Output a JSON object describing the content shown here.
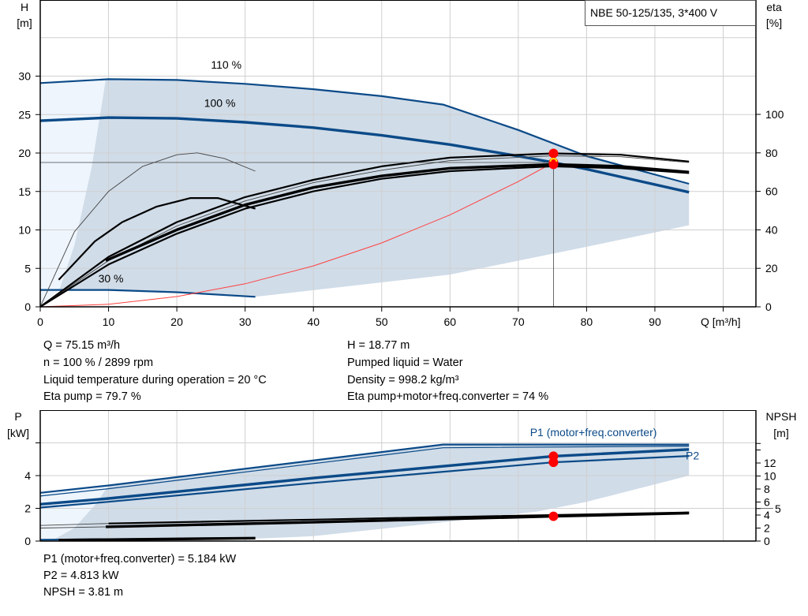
{
  "title_box": "NBE 50-125/135, 3*400 V",
  "colors": {
    "curve_blue": "#0b4a88",
    "band": "#d0dce8",
    "band_light": "#eef5fd",
    "duty_point": "#ff0000",
    "system_curve": "#ff4040",
    "grid": "#d0d0d0"
  },
  "info": {
    "left": [
      "Q = 75.15 m³/h",
      "n = 100 % / 2899 rpm",
      "Liquid temperature during operation = 20 °C",
      "Eta pump = 79.7 %"
    ],
    "right": [
      "H = 18.77 m",
      "Pumped liquid = Water",
      "Density = 998.2 kg/m³",
      "Eta pump+motor+freq.converter = 74 %"
    ],
    "bottom": [
      "P1 (motor+freq.converter) = 5.184 kW",
      "P2 = 4.813 kW",
      "NPSH = 3.81 m"
    ]
  },
  "chart_data": [
    {
      "type": "line",
      "title": "NBE 50-125/135, 3*400 V",
      "xlabel": "Q [m³/h]",
      "ylabel": [
        "H",
        "[m]"
      ],
      "y2label": [
        "eta",
        "[%]"
      ],
      "xlim": [
        0,
        105
      ],
      "ylim": [
        0,
        40
      ],
      "y2lim": [
        0,
        160
      ],
      "grid": true,
      "xticks": [
        0,
        10,
        20,
        30,
        40,
        50,
        60,
        70,
        80,
        90
      ],
      "yticks": [
        0,
        5,
        10,
        15,
        20,
        25,
        30
      ],
      "y2ticks": [
        0,
        20,
        40,
        60,
        80,
        100
      ],
      "curve_labels": [
        {
          "text": "110 %",
          "x": 25,
          "y": 31
        },
        {
          "text": "100 %",
          "x": 24,
          "y": 26
        },
        {
          "text": "30 %",
          "x": 8.5,
          "y": 3.2
        }
      ],
      "operating_range_light": [
        [
          0,
          0
        ],
        [
          0,
          29.1
        ],
        [
          9.6,
          29.6
        ],
        [
          7.5,
          18
        ],
        [
          5,
          8
        ],
        [
          2.8,
          2.2
        ],
        [
          0,
          0
        ]
      ],
      "operating_range": [
        [
          9.6,
          29.6
        ],
        [
          20,
          29.5
        ],
        [
          30,
          29.0
        ],
        [
          40,
          28.3
        ],
        [
          50,
          27.4
        ],
        [
          59,
          26.3
        ],
        [
          70,
          23.0
        ],
        [
          80,
          19.6
        ],
        [
          95,
          16.0
        ],
        [
          95,
          10.6
        ],
        [
          80,
          7.8
        ],
        [
          60,
          4.2
        ],
        [
          31.5,
          1.3
        ],
        [
          20,
          1.9
        ],
        [
          10,
          2.2
        ],
        [
          2.8,
          2.2
        ],
        [
          5,
          8
        ],
        [
          7.5,
          18
        ]
      ],
      "series": [
        {
          "name": "110 %",
          "axis": "H",
          "style": "blue",
          "points": [
            [
              0,
              29.1
            ],
            [
              10,
              29.6
            ],
            [
              20,
              29.5
            ],
            [
              30,
              29.0
            ],
            [
              40,
              28.3
            ],
            [
              50,
              27.4
            ],
            [
              59,
              26.3
            ],
            [
              70,
              23.0
            ],
            [
              80,
              19.6
            ],
            [
              95,
              16.0
            ]
          ]
        },
        {
          "name": "100 %",
          "axis": "H",
          "style": "blue-thick",
          "points": [
            [
              0,
              24.2
            ],
            [
              10,
              24.6
            ],
            [
              20,
              24.5
            ],
            [
              30,
              24.0
            ],
            [
              40,
              23.3
            ],
            [
              50,
              22.3
            ],
            [
              60,
              21.1
            ],
            [
              70,
              19.6
            ],
            [
              75.15,
              18.77
            ],
            [
              80,
              17.9
            ],
            [
              95,
              14.9
            ]
          ]
        },
        {
          "name": "30 %",
          "axis": "H",
          "style": "blue",
          "points": [
            [
              0,
              2.2
            ],
            [
              10,
              2.2
            ],
            [
              20,
              1.9
            ],
            [
              31.5,
              1.3
            ]
          ]
        },
        {
          "axis": "H",
          "style": "system",
          "points": [
            [
              0,
              0
            ],
            [
              10,
              0.33
            ],
            [
              20,
              1.33
            ],
            [
              30,
              2.99
            ],
            [
              40,
              5.32
            ],
            [
              50,
              8.31
            ],
            [
              60,
              11.96
            ],
            [
              70,
              16.29
            ],
            [
              75.15,
              18.77
            ]
          ]
        },
        {
          "axis": "eta",
          "style": "black",
          "points": [
            [
              0,
              0
            ],
            [
              10,
              26
            ],
            [
              20,
              44
            ],
            [
              30,
              57
            ],
            [
              40,
              66
            ],
            [
              50,
              73
            ],
            [
              60,
              77.5
            ],
            [
              75.15,
              79.7
            ],
            [
              85,
              79
            ],
            [
              95,
              75.5
            ]
          ]
        },
        {
          "axis": "eta",
          "style": "gray-thin",
          "points": [
            [
              0,
              0
            ],
            [
              10,
              24
            ],
            [
              20,
              42
            ],
            [
              30,
              55
            ],
            [
              40,
              64.5
            ],
            [
              50,
              71
            ],
            [
              60,
              76
            ],
            [
              75,
              78.5
            ],
            [
              85,
              78
            ],
            [
              95,
              75
            ]
          ]
        },
        {
          "axis": "eta",
          "style": "black-thick",
          "points": [
            [
              9.6,
              24
            ],
            [
              20,
              40
            ],
            [
              30,
              53
            ],
            [
              40,
              62
            ],
            [
              50,
              68
            ],
            [
              60,
              72
            ],
            [
              75.15,
              74
            ],
            [
              85,
              73
            ],
            [
              95,
              70
            ]
          ]
        },
        {
          "axis": "eta",
          "style": "black",
          "points": [
            [
              0,
              0
            ],
            [
              10,
              22
            ],
            [
              20,
              38
            ],
            [
              30,
              51
            ],
            [
              40,
              60
            ],
            [
              50,
              66.5
            ],
            [
              60,
              70.5
            ],
            [
              75,
              73
            ],
            [
              85,
              72
            ],
            [
              95,
              69.5
            ]
          ]
        },
        {
          "axis": "eta",
          "style": "gray-thin",
          "points": [
            [
              0,
              0
            ],
            [
              5,
              39
            ],
            [
              10,
              60
            ],
            [
              15,
              73
            ],
            [
              20,
              79
            ],
            [
              23,
              80
            ],
            [
              27,
              77
            ],
            [
              31.5,
              70.5
            ]
          ]
        },
        {
          "axis": "eta",
          "style": "black",
          "points": [
            [
              2.7,
              14
            ],
            [
              8,
              34
            ],
            [
              12,
              44
            ],
            [
              17,
              52
            ],
            [
              22,
              56.5
            ],
            [
              26,
              56.5
            ],
            [
              31.5,
              51
            ]
          ]
        }
      ],
      "duty_point": {
        "Q": 75.15,
        "H": 18.77,
        "eta_pump": 79.7,
        "eta_total": 74
      }
    },
    {
      "type": "line",
      "ylabel": [
        "P",
        "[kW]"
      ],
      "y2label": [
        "NPSH",
        "[m]"
      ],
      "xlim": [
        0,
        105
      ],
      "ylim": [
        0,
        8
      ],
      "y2lim": [
        0,
        20
      ],
      "grid": true,
      "yticks": [
        0,
        2,
        4
      ],
      "y2ticks": [
        0,
        2,
        4,
        5,
        6,
        8,
        10,
        12
      ],
      "y2ticks_unlabeled": [
        14,
        15
      ],
      "curve_labels": [
        {
          "text": "P1 (motor+freq.converter)",
          "x": 81,
          "y": 6.4
        },
        {
          "text": "P2",
          "x": 95.5,
          "y": 5.0
        }
      ],
      "operating_range_light": [
        [
          0,
          0
        ],
        [
          0,
          2.95
        ],
        [
          10,
          3.4
        ],
        [
          8,
          2.2
        ],
        [
          5,
          0.8
        ],
        [
          2,
          0.1
        ],
        [
          0,
          0
        ]
      ],
      "operating_range": [
        [
          10,
          3.4
        ],
        [
          59,
          5.9
        ],
        [
          95,
          5.9
        ],
        [
          95,
          4.0
        ],
        [
          80,
          2.4
        ],
        [
          72.7,
          1.8
        ],
        [
          60,
          1.2
        ],
        [
          40,
          0.3
        ],
        [
          31.5,
          0.15
        ],
        [
          2,
          0.1
        ],
        [
          5,
          0.8
        ],
        [
          8,
          2.2
        ]
      ],
      "series": [
        {
          "axis": "P",
          "style": "blue",
          "points": [
            [
              0,
              2.95
            ],
            [
              10,
              3.4
            ],
            [
              59,
              5.9
            ],
            [
              95,
              5.9
            ]
          ]
        },
        {
          "axis": "P",
          "style": "blue-thin",
          "points": [
            [
              0,
              2.75
            ],
            [
              10,
              3.2
            ],
            [
              59,
              5.7
            ],
            [
              95,
              5.8
            ]
          ]
        },
        {
          "name": "P1 (motor+freq.converter)",
          "axis": "P",
          "style": "blue-thick",
          "points": [
            [
              0,
              2.25
            ],
            [
              10,
              2.6
            ],
            [
              40,
              3.85
            ],
            [
              75.15,
              5.184
            ],
            [
              95,
              5.6
            ]
          ]
        },
        {
          "name": "P2",
          "axis": "P",
          "style": "blue",
          "points": [
            [
              0,
              2.05
            ],
            [
              10,
              2.4
            ],
            [
              40,
              3.55
            ],
            [
              75.15,
              4.813
            ],
            [
              95,
              5.2
            ]
          ]
        },
        {
          "axis": "P",
          "style": "blue",
          "points": [
            [
              0,
              0.08
            ],
            [
              31.5,
              0.18
            ]
          ]
        },
        {
          "axis": "NPSH",
          "style": "gray-thin",
          "points": [
            [
              0,
              2.4
            ],
            [
              10,
              2.7
            ],
            [
              95,
              4.4
            ]
          ]
        },
        {
          "axis": "NPSH",
          "style": "gray-thin",
          "points": [
            [
              0,
              2.0
            ],
            [
              10,
              2.2
            ],
            [
              95,
              4.3
            ]
          ]
        },
        {
          "axis": "NPSH",
          "style": "black-thick",
          "points": [
            [
              9.6,
              2.2
            ],
            [
              40,
              2.9
            ],
            [
              75.15,
              3.81
            ],
            [
              95,
              4.3
            ]
          ]
        },
        {
          "axis": "NPSH",
          "style": "black",
          "points": [
            [
              10,
              2.7
            ],
            [
              40,
              3.3
            ],
            [
              95,
              4.4
            ]
          ]
        },
        {
          "axis": "NPSH",
          "style": "black-thick",
          "points": [
            [
              2.7,
              0.15
            ],
            [
              31.5,
              0.45
            ]
          ]
        }
      ],
      "duty_point": {
        "Q": 75.15,
        "P1": 5.184,
        "P2": 4.813,
        "NPSH": 3.81
      }
    }
  ]
}
